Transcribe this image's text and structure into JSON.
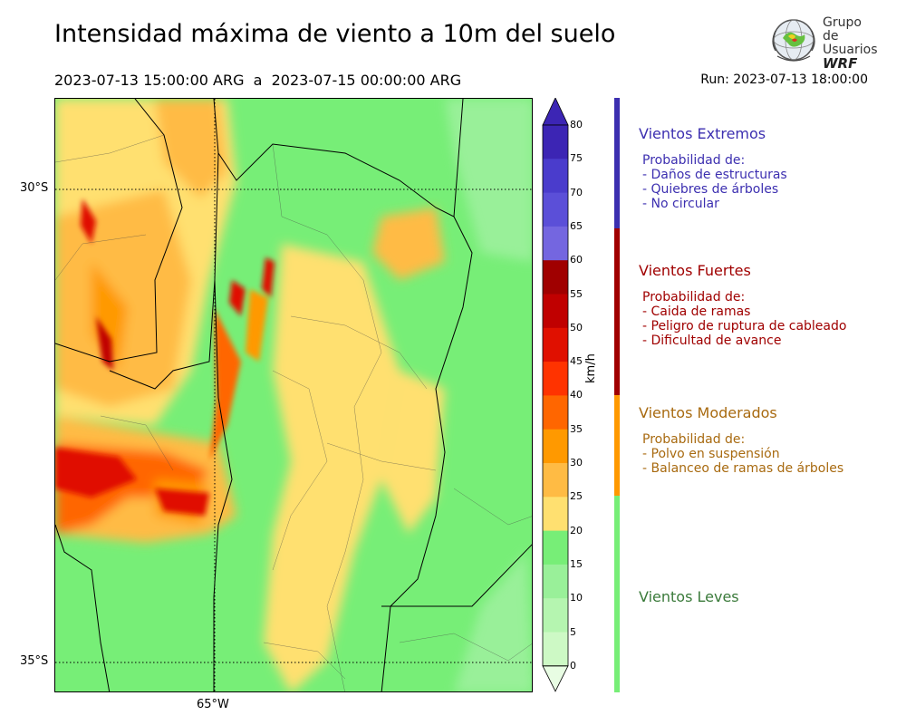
{
  "title": "Intensidad máxima de viento a 10m del suelo",
  "period": "2023-07-13 15:00:00 ARG  a  2023-07-15 00:00:00 ARG",
  "run": "Run: 2023-07-13 18:00:00",
  "logo": {
    "line1": "Grupo de",
    "line2": "Usuarios",
    "line3": "WRF"
  },
  "map": {
    "lat_labels": [
      "30°S",
      "35°S"
    ],
    "lon_labels": [
      "65°W"
    ]
  },
  "colorbar": {
    "unit": "km/h",
    "ticks": [
      "80",
      "75",
      "70",
      "65",
      "60",
      "55",
      "50",
      "45",
      "40",
      "35",
      "30",
      "25",
      "20",
      "15",
      "10",
      "5",
      "0"
    ],
    "colors": [
      "#3c25b4",
      "#4a3ccc",
      "#5b4fd8",
      "#7466e0",
      "#a00000",
      "#c00000",
      "#e01000",
      "#ff3300",
      "#ff6600",
      "#ff9900",
      "#ffbb44",
      "#ffe070",
      "#77ee77",
      "#99f099",
      "#b5f5b0",
      "#cdf9c5",
      "#e8fde3"
    ]
  },
  "categories": [
    {
      "title": "Vientos Extremos",
      "color": "#3c2fb0",
      "lines": [
        "Probabilidad de:",
        "- Daños de estructuras",
        "- Quiebres de árboles",
        "- No circular"
      ]
    },
    {
      "title": "Vientos Fuertes",
      "color": "#a00000",
      "lines": [
        "Probabilidad de:",
        "- Caida de ramas",
        "- Peligro de ruptura de cableado",
        "- Dificultad de avance"
      ]
    },
    {
      "title": "Vientos Moderados",
      "color": "#a86a10",
      "lines": [
        "Probabilidad de:",
        "- Polvo en suspensión",
        "- Balanceo de ramas de árboles"
      ]
    },
    {
      "title": "Vientos Leves",
      "color": "#3a7a3a",
      "lines": []
    }
  ]
}
